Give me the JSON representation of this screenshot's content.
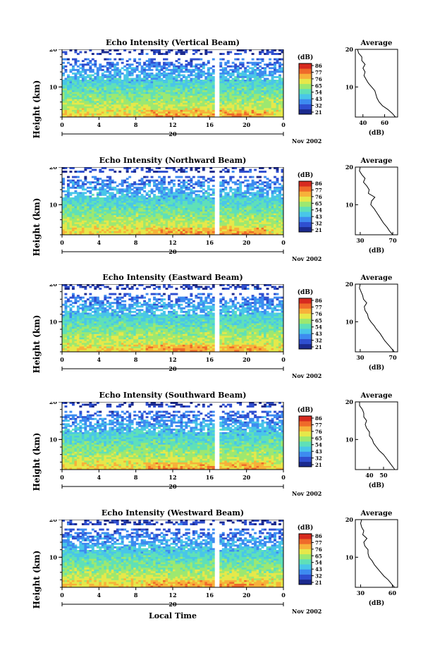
{
  "xlabel": "Local Time",
  "ylabel": "Height (km)",
  "units_label": "(dB)",
  "avg_xlabel": "(dB)",
  "avg_title": "Average",
  "day": "20",
  "month_year": "Nov 2002",
  "x_ticks": [
    "0",
    "4",
    "8",
    "12",
    "16",
    "20",
    "0"
  ],
  "y_ticks": [
    "20",
    "10"
  ],
  "colorbar_ticks": [
    "86",
    "77",
    "76",
    "65",
    "54",
    "43",
    "32",
    "21"
  ],
  "colors": {
    "colormap": [
      "#1b2a8e",
      "#2f4fd0",
      "#3d8bf0",
      "#49c6e8",
      "#5fe0b8",
      "#9de870",
      "#e6e84a",
      "#f7b13a",
      "#ef6a2a",
      "#d72a1f"
    ]
  },
  "chart_data": [
    {
      "type": "heatmap",
      "title": "Echo Intensity (Vertical Beam)",
      "xlabel": "Local Time",
      "ylabel": "Height (km)",
      "xlim": [
        0,
        24
      ],
      "ylim": [
        2,
        20
      ],
      "colorbar_range_db": [
        21,
        86
      ],
      "avg_xlim": [
        33,
        72
      ],
      "avg_ticks": [
        "40",
        "60"
      ],
      "average_profile": {
        "height_km": [
          2,
          3,
          4,
          5,
          6,
          7,
          8,
          9,
          10,
          11,
          12,
          13,
          14,
          15,
          16,
          17,
          18,
          19,
          20
        ],
        "db": [
          70,
          67,
          63,
          58,
          55,
          53,
          52,
          51,
          48,
          45,
          43,
          41,
          42,
          40,
          42,
          39,
          39,
          36,
          35
        ]
      }
    },
    {
      "type": "heatmap",
      "title": "Echo Intensity (Northward Beam)",
      "xlabel": "Local Time",
      "ylabel": "Height (km)",
      "xlim": [
        0,
        24
      ],
      "ylim": [
        2,
        20
      ],
      "colorbar_range_db": [
        21,
        86
      ],
      "avg_xlim": [
        24,
        76
      ],
      "avg_ticks": [
        "30",
        "70"
      ],
      "average_profile": {
        "height_km": [
          2,
          3,
          4,
          5,
          6,
          7,
          8,
          9,
          10,
          11,
          12,
          13,
          14,
          15,
          16,
          17,
          18,
          19,
          20
        ],
        "db": [
          70,
          66,
          63,
          59,
          56,
          53,
          50,
          47,
          43,
          44,
          48,
          40,
          41,
          38,
          34,
          36,
          32,
          29,
          30
        ]
      }
    },
    {
      "type": "heatmap",
      "title": "Echo Intensity (Eastward Beam)",
      "xlabel": "Local Time",
      "ylabel": "Height (km)",
      "xlim": [
        0,
        24
      ],
      "ylim": [
        2,
        20
      ],
      "colorbar_range_db": [
        21,
        86
      ],
      "avg_xlim": [
        24,
        76
      ],
      "avg_ticks": [
        "30",
        "70"
      ],
      "average_profile": {
        "height_km": [
          2,
          3,
          4,
          5,
          6,
          7,
          8,
          9,
          10,
          11,
          12,
          13,
          14,
          15,
          16,
          17,
          18,
          19,
          20
        ],
        "db": [
          72,
          68,
          64,
          60,
          57,
          54,
          50,
          47,
          43,
          40,
          39,
          36,
          35,
          38,
          34,
          33,
          31,
          29,
          30
        ]
      }
    },
    {
      "type": "heatmap",
      "title": "Echo Intensity (Southward Beam)",
      "xlabel": "Local Time",
      "ylabel": "Height (km)",
      "xlim": [
        0,
        24
      ],
      "ylim": [
        2,
        20
      ],
      "colorbar_range_db": [
        21,
        86
      ],
      "avg_xlim": [
        30,
        60
      ],
      "avg_ticks": [
        "40",
        "50"
      ],
      "average_profile": {
        "height_km": [
          2,
          3,
          4,
          5,
          6,
          7,
          8,
          9,
          10,
          11,
          12,
          13,
          14,
          15,
          16,
          17,
          18,
          19,
          20
        ],
        "db": [
          58,
          56,
          54,
          52,
          50,
          47,
          45,
          43,
          42,
          40,
          40,
          38,
          37,
          38,
          36,
          36,
          35,
          33,
          33
        ]
      }
    },
    {
      "type": "heatmap",
      "title": "Echo Intensity (Westward Beam)",
      "xlabel": "Local Time",
      "ylabel": "Height (km)",
      "xlim": [
        0,
        24
      ],
      "ylim": [
        2,
        20
      ],
      "colorbar_range_db": [
        21,
        86
      ],
      "avg_xlim": [
        25,
        65
      ],
      "avg_ticks": [
        "30",
        "60"
      ],
      "average_profile": {
        "height_km": [
          2,
          3,
          4,
          5,
          6,
          7,
          8,
          9,
          10,
          11,
          12,
          13,
          14,
          15,
          16,
          17,
          18,
          19,
          20
        ],
        "db": [
          62,
          59,
          56,
          52,
          49,
          46,
          43,
          41,
          38,
          37,
          37,
          34,
          33,
          36,
          32,
          33,
          31,
          30,
          31
        ]
      }
    }
  ]
}
